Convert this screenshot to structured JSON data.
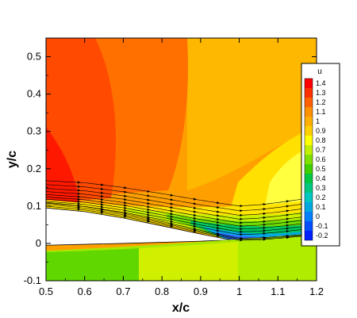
{
  "chart_data": {
    "type": "heatmap",
    "xlabel": "x/c",
    "ylabel": "y/c",
    "xlim": [
      0.5,
      1.2
    ],
    "ylim": [
      -0.1,
      0.55
    ],
    "xticks": [
      "0.5",
      "0.6",
      "0.7",
      "0.8",
      "0.9",
      "1",
      "1.1",
      "1.2"
    ],
    "yticks": [
      "-0.1",
      "0",
      "0.1",
      "0.2",
      "0.3",
      "0.4",
      "0.5"
    ],
    "legend": {
      "title": "u",
      "placement": "right",
      "levels": [
        "1.4",
        "1.3",
        "1.2",
        "1.1",
        "1",
        "0.9",
        "0.8",
        "0.7",
        "0.6",
        "0.5",
        "0.4",
        "0.3",
        "0.2",
        "0.1",
        "0",
        "-0.1",
        "-0.2"
      ],
      "colors": [
        "#ff0000",
        "#ff3000",
        "#ff6000",
        "#ff9000",
        "#ffb000",
        "#ffd000",
        "#ffff00",
        "#c0f000",
        "#80e000",
        "#40d000",
        "#00c840",
        "#00c880",
        "#00c8c0",
        "#00a8e0",
        "#0080ff",
        "#0050ff",
        "#0020ff"
      ]
    },
    "airfoil_upper_surface": {
      "x": [
        0.5,
        0.6,
        0.7,
        0.8,
        0.9,
        1.0,
        1.05,
        1.1,
        1.2
      ],
      "y": [
        0.095,
        0.085,
        0.068,
        0.047,
        0.025,
        0.005,
        0.006,
        0.01,
        0.02
      ]
    },
    "airfoil_lower_surface": {
      "x": [
        0.5,
        0.7,
        0.9,
        1.0,
        1.2
      ],
      "y": [
        -0.005,
        0.0,
        0.006,
        0.01,
        0.02
      ]
    },
    "streamline_y0_at_x05": [
      0.098,
      0.103,
      0.108,
      0.114,
      0.12,
      0.126,
      0.132,
      0.138,
      0.145,
      0.152,
      0.16,
      0.168
    ]
  }
}
